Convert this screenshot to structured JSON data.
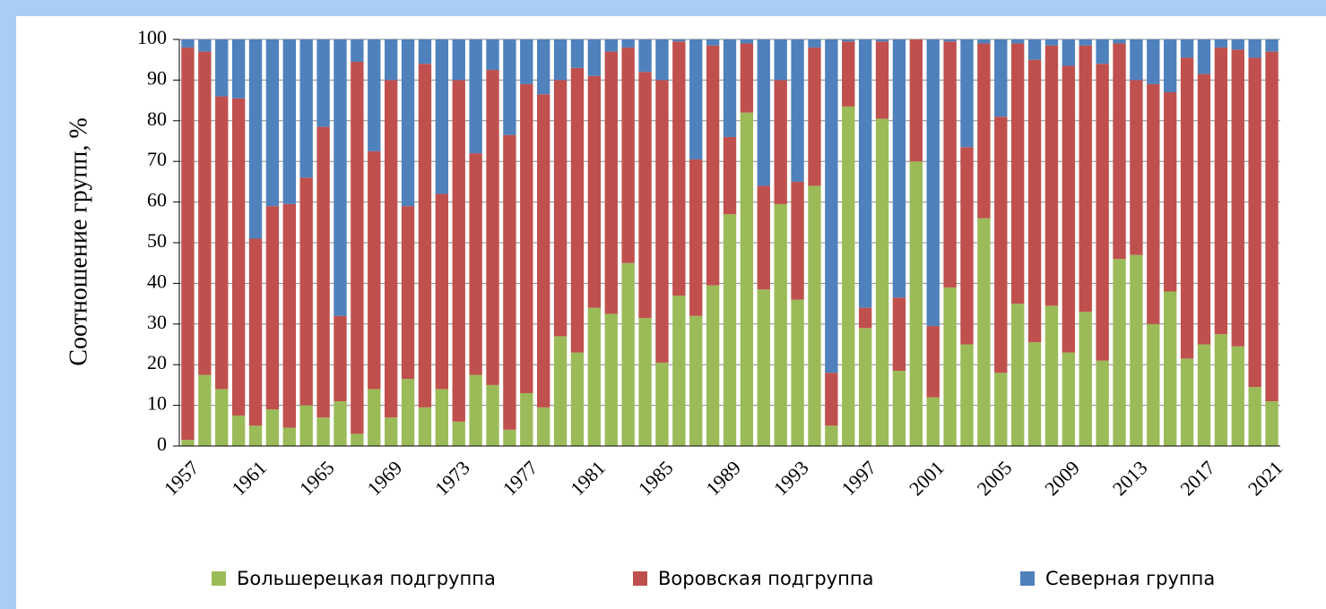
{
  "chart_data": {
    "type": "stacked_bar",
    "categories": [
      "1957",
      null,
      null,
      null,
      "1961",
      null,
      null,
      null,
      "1965",
      null,
      null,
      null,
      "1969",
      null,
      null,
      null,
      "1973",
      null,
      null,
      null,
      "1977",
      null,
      null,
      null,
      "1981",
      null,
      null,
      null,
      "1985",
      null,
      null,
      null,
      "1989",
      null,
      null,
      null,
      "1993",
      null,
      null,
      null,
      "1997",
      null,
      null,
      null,
      "2001",
      null,
      null,
      null,
      "2005",
      null,
      null,
      null,
      "2009",
      null,
      null,
      null,
      "2013",
      null,
      null,
      null,
      "2017",
      null,
      null,
      null,
      "2021"
    ],
    "y_label": "Соотношение групп, %",
    "ylim": [
      0,
      100
    ],
    "yticks": [
      0,
      10,
      20,
      30,
      40,
      50,
      60,
      70,
      80,
      90,
      100
    ],
    "series": [
      {
        "name": "Большерецкая подгруппа",
        "color": "#9bbb59",
        "values": [
          1.5,
          17.5,
          14,
          7.5,
          5,
          9,
          4.5,
          10,
          7,
          11,
          3,
          14,
          7,
          16.5,
          9.5,
          14,
          6,
          17.5,
          15,
          4,
          13,
          9.5,
          27,
          23,
          34,
          32.5,
          45,
          31.5,
          20.5,
          37,
          32,
          39.5,
          57,
          82,
          38.5,
          59.5,
          36,
          64,
          5,
          83.5,
          29,
          80.5,
          18.5,
          70,
          12,
          39,
          25,
          56,
          18,
          35,
          25.5,
          34.5,
          23,
          33,
          21,
          46,
          47,
          30,
          38,
          21.5,
          25,
          27.5,
          24.5,
          14.5,
          11
        ]
      },
      {
        "name": "Воровская подгруппа",
        "color": "#c0504d",
        "values": [
          96.5,
          79.5,
          72,
          78,
          46,
          50,
          55,
          56,
          71.5,
          21,
          91.5,
          58.5,
          83,
          42.5,
          84.5,
          48,
          84,
          54.5,
          77.5,
          72.5,
          76,
          77,
          63,
          70,
          57,
          64.5,
          53,
          60.5,
          69.5,
          62.5,
          38.5,
          59,
          19,
          17,
          25.5,
          30.5,
          29,
          34,
          13,
          16,
          5,
          19,
          18,
          30,
          17.5,
          60.5,
          48.5,
          43,
          63,
          64,
          69.5,
          64,
          70.5,
          65.5,
          73,
          53,
          43,
          59,
          49,
          74,
          66.5,
          70.5,
          73,
          81,
          86
        ]
      },
      {
        "name": "Северная группа",
        "color": "#4f81bd",
        "values": [
          2,
          3,
          14,
          14.5,
          49,
          41,
          40.5,
          34,
          21.5,
          68,
          5.5,
          27.5,
          10,
          41,
          6,
          38,
          10,
          28,
          7.5,
          23.5,
          11,
          13.5,
          10,
          7,
          9,
          3,
          2,
          8,
          10,
          0.5,
          29.5,
          1.5,
          24,
          1,
          36,
          10,
          35,
          2,
          82,
          0.5,
          66,
          0.5,
          63.5,
          0,
          70.5,
          0.5,
          26.5,
          1,
          19,
          1,
          5,
          1.5,
          6.5,
          1.5,
          6,
          1,
          10,
          11,
          13,
          4.5,
          8.5,
          2,
          2.5,
          4.5,
          3
        ]
      }
    ],
    "grid": true,
    "legend": "bottom"
  }
}
